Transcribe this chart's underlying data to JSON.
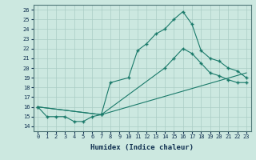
{
  "xlabel": "Humidex (Indice chaleur)",
  "xlim": [
    -0.5,
    23.5
  ],
  "ylim": [
    13.5,
    26.5
  ],
  "yticks": [
    14,
    15,
    16,
    17,
    18,
    19,
    20,
    21,
    22,
    23,
    24,
    25,
    26
  ],
  "xticks": [
    0,
    1,
    2,
    3,
    4,
    5,
    6,
    7,
    8,
    9,
    10,
    11,
    12,
    13,
    14,
    15,
    16,
    17,
    18,
    19,
    20,
    21,
    22,
    23
  ],
  "background_color": "#cce8e0",
  "grid_color": "#aaccc4",
  "line_color": "#1a7a6a",
  "line1_x": [
    0,
    1,
    2,
    3,
    4,
    5,
    6,
    7,
    8,
    10,
    11,
    12,
    13,
    14,
    15,
    16,
    17,
    18,
    19,
    20,
    21,
    22,
    23
  ],
  "line1_y": [
    16,
    15,
    15,
    15,
    14.5,
    14.5,
    15,
    15.2,
    18.5,
    19.0,
    21.8,
    22.5,
    23.5,
    24.0,
    25.0,
    25.8,
    24.5,
    21.8,
    21.0,
    20.7,
    20.0,
    19.7,
    19.0
  ],
  "line2_x": [
    0,
    7,
    14,
    15,
    16,
    17,
    18,
    19,
    20,
    21,
    22,
    23
  ],
  "line2_y": [
    16,
    15.2,
    20.0,
    21.0,
    22.0,
    21.5,
    20.5,
    19.5,
    19.2,
    18.8,
    18.5,
    18.5
  ],
  "line3_x": [
    0,
    7,
    23
  ],
  "line3_y": [
    16,
    15.2,
    19.5
  ]
}
